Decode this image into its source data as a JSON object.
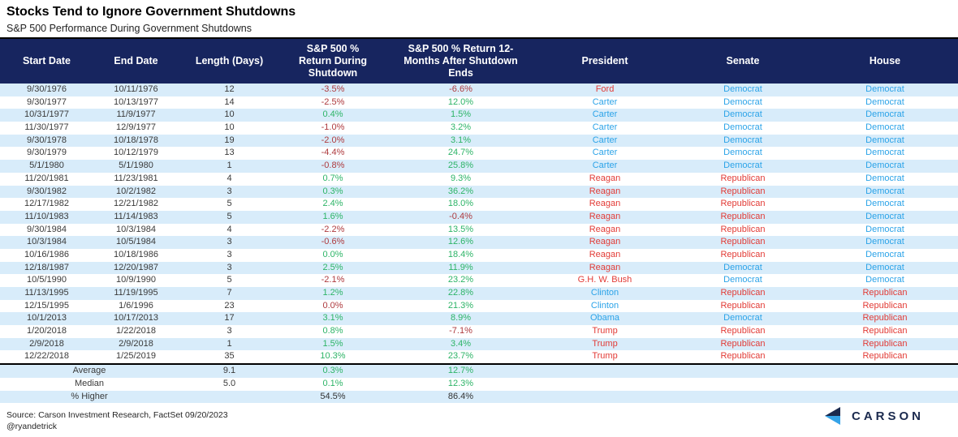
{
  "title": "Stocks Tend to Ignore Government Shutdowns",
  "subtitle": "S&P 500 Performance During Government Shutdowns",
  "chart_data": {
    "type": "table",
    "columns": [
      "Start Date",
      "End Date",
      "Length (Days)",
      "S&P 500 %\nReturn During\nShutdown",
      "S&P 500 % Return 12-\nMonths After Shutdown\nEnds",
      "President",
      "Senate",
      "House"
    ],
    "rows": [
      {
        "start": "9/30/1976",
        "end": "10/11/1976",
        "len": "12",
        "during": "-3.5%",
        "during_c": "neg",
        "after": "-6.6%",
        "after_c": "neg",
        "pres": "Ford",
        "pres_c": "rep",
        "senate": "Democrat",
        "senate_c": "dem",
        "house": "Democrat",
        "house_c": "dem"
      },
      {
        "start": "9/30/1977",
        "end": "10/13/1977",
        "len": "14",
        "during": "-2.5%",
        "during_c": "neg",
        "after": "12.0%",
        "after_c": "pos",
        "pres": "Carter",
        "pres_c": "dem",
        "senate": "Democrat",
        "senate_c": "dem",
        "house": "Democrat",
        "house_c": "dem"
      },
      {
        "start": "10/31/1977",
        "end": "11/9/1977",
        "len": "10",
        "during": "0.4%",
        "during_c": "pos",
        "after": "1.5%",
        "after_c": "pos",
        "pres": "Carter",
        "pres_c": "dem",
        "senate": "Democrat",
        "senate_c": "dem",
        "house": "Democrat",
        "house_c": "dem"
      },
      {
        "start": "11/30/1977",
        "end": "12/9/1977",
        "len": "10",
        "during": "-1.0%",
        "during_c": "neg",
        "after": "3.2%",
        "after_c": "pos",
        "pres": "Carter",
        "pres_c": "dem",
        "senate": "Democrat",
        "senate_c": "dem",
        "house": "Democrat",
        "house_c": "dem"
      },
      {
        "start": "9/30/1978",
        "end": "10/18/1978",
        "len": "19",
        "during": "-2.0%",
        "during_c": "neg",
        "after": "3.1%",
        "after_c": "pos",
        "pres": "Carter",
        "pres_c": "dem",
        "senate": "Democrat",
        "senate_c": "dem",
        "house": "Democrat",
        "house_c": "dem"
      },
      {
        "start": "9/30/1979",
        "end": "10/12/1979",
        "len": "13",
        "during": "-4.4%",
        "during_c": "neg",
        "after": "24.7%",
        "after_c": "pos",
        "pres": "Carter",
        "pres_c": "dem",
        "senate": "Democrat",
        "senate_c": "dem",
        "house": "Democrat",
        "house_c": "dem"
      },
      {
        "start": "5/1/1980",
        "end": "5/1/1980",
        "len": "1",
        "during": "-0.8%",
        "during_c": "neg",
        "after": "25.8%",
        "after_c": "pos",
        "pres": "Carter",
        "pres_c": "dem",
        "senate": "Democrat",
        "senate_c": "dem",
        "house": "Democrat",
        "house_c": "dem"
      },
      {
        "start": "11/20/1981",
        "end": "11/23/1981",
        "len": "4",
        "during": "0.7%",
        "during_c": "pos",
        "after": "9.3%",
        "after_c": "pos",
        "pres": "Reagan",
        "pres_c": "rep",
        "senate": "Republican",
        "senate_c": "rep",
        "house": "Democrat",
        "house_c": "dem"
      },
      {
        "start": "9/30/1982",
        "end": "10/2/1982",
        "len": "3",
        "during": "0.3%",
        "during_c": "pos",
        "after": "36.2%",
        "after_c": "pos",
        "pres": "Reagan",
        "pres_c": "rep",
        "senate": "Republican",
        "senate_c": "rep",
        "house": "Democrat",
        "house_c": "dem"
      },
      {
        "start": "12/17/1982",
        "end": "12/21/1982",
        "len": "5",
        "during": "2.4%",
        "during_c": "pos",
        "after": "18.0%",
        "after_c": "pos",
        "pres": "Reagan",
        "pres_c": "rep",
        "senate": "Republican",
        "senate_c": "rep",
        "house": "Democrat",
        "house_c": "dem"
      },
      {
        "start": "11/10/1983",
        "end": "11/14/1983",
        "len": "5",
        "during": "1.6%",
        "during_c": "pos",
        "after": "-0.4%",
        "after_c": "neg",
        "pres": "Reagan",
        "pres_c": "rep",
        "senate": "Republican",
        "senate_c": "rep",
        "house": "Democrat",
        "house_c": "dem"
      },
      {
        "start": "9/30/1984",
        "end": "10/3/1984",
        "len": "4",
        "during": "-2.2%",
        "during_c": "neg",
        "after": "13.5%",
        "after_c": "pos",
        "pres": "Reagan",
        "pres_c": "rep",
        "senate": "Republican",
        "senate_c": "rep",
        "house": "Democrat",
        "house_c": "dem"
      },
      {
        "start": "10/3/1984",
        "end": "10/5/1984",
        "len": "3",
        "during": "-0.6%",
        "during_c": "neg",
        "after": "12.6%",
        "after_c": "pos",
        "pres": "Reagan",
        "pres_c": "rep",
        "senate": "Republican",
        "senate_c": "rep",
        "house": "Democrat",
        "house_c": "dem"
      },
      {
        "start": "10/16/1986",
        "end": "10/18/1986",
        "len": "3",
        "during": "0.0%",
        "during_c": "pos",
        "after": "18.4%",
        "after_c": "pos",
        "pres": "Reagan",
        "pres_c": "rep",
        "senate": "Republican",
        "senate_c": "rep",
        "house": "Democrat",
        "house_c": "dem"
      },
      {
        "start": "12/18/1987",
        "end": "12/20/1987",
        "len": "3",
        "during": "2.5%",
        "during_c": "pos",
        "after": "11.9%",
        "after_c": "pos",
        "pres": "Reagan",
        "pres_c": "rep",
        "senate": "Democrat",
        "senate_c": "dem",
        "house": "Democrat",
        "house_c": "dem"
      },
      {
        "start": "10/5/1990",
        "end": "10/9/1990",
        "len": "5",
        "during": "-2.1%",
        "during_c": "neg",
        "after": "23.2%",
        "after_c": "pos",
        "pres": "G.H. W. Bush",
        "pres_c": "rep",
        "senate": "Democrat",
        "senate_c": "dem",
        "house": "Democrat",
        "house_c": "dem"
      },
      {
        "start": "11/13/1995",
        "end": "11/19/1995",
        "len": "7",
        "during": "1.2%",
        "during_c": "pos",
        "after": "22.8%",
        "after_c": "pos",
        "pres": "Clinton",
        "pres_c": "dem",
        "senate": "Republican",
        "senate_c": "rep",
        "house": "Republican",
        "house_c": "rep"
      },
      {
        "start": "12/15/1995",
        "end": "1/6/1996",
        "len": "23",
        "during": "0.0%",
        "during_c": "neg",
        "after": "21.3%",
        "after_c": "pos",
        "pres": "Clinton",
        "pres_c": "dem",
        "senate": "Republican",
        "senate_c": "rep",
        "house": "Republican",
        "house_c": "rep"
      },
      {
        "start": "10/1/2013",
        "end": "10/17/2013",
        "len": "17",
        "during": "3.1%",
        "during_c": "pos",
        "after": "8.9%",
        "after_c": "pos",
        "pres": "Obama",
        "pres_c": "dem",
        "senate": "Democrat",
        "senate_c": "dem",
        "house": "Republican",
        "house_c": "rep"
      },
      {
        "start": "1/20/2018",
        "end": "1/22/2018",
        "len": "3",
        "during": "0.8%",
        "during_c": "pos",
        "after": "-7.1%",
        "after_c": "neg",
        "pres": "Trump",
        "pres_c": "rep",
        "senate": "Republican",
        "senate_c": "rep",
        "house": "Republican",
        "house_c": "rep"
      },
      {
        "start": "2/9/2018",
        "end": "2/9/2018",
        "len": "1",
        "during": "1.5%",
        "during_c": "pos",
        "after": "3.4%",
        "after_c": "pos",
        "pres": "Trump",
        "pres_c": "rep",
        "senate": "Republican",
        "senate_c": "rep",
        "house": "Republican",
        "house_c": "rep"
      },
      {
        "start": "12/22/2018",
        "end": "1/25/2019",
        "len": "35",
        "during": "10.3%",
        "during_c": "pos",
        "after": "23.7%",
        "after_c": "pos",
        "pres": "Trump",
        "pres_c": "rep",
        "senate": "Republican",
        "senate_c": "rep",
        "house": "Republican",
        "house_c": "rep"
      }
    ],
    "summary": [
      {
        "label": "Average",
        "len": "9.1",
        "during": "0.3%",
        "during_c": "pos",
        "after": "12.7%",
        "after_c": "pos"
      },
      {
        "label": "Median",
        "len": "5.0",
        "during": "0.1%",
        "during_c": "pos",
        "after": "12.3%",
        "after_c": "pos"
      },
      {
        "label": "% Higher",
        "len": "",
        "during": "54.5%",
        "during_c": "plain",
        "after": "86.4%",
        "after_c": "plain"
      }
    ]
  },
  "footer": {
    "source": "Source: Carson Investment Research, FactSet 09/20/2023",
    "handle": "@ryandetrick"
  },
  "logo": {
    "text": "CARSON"
  },
  "colors": {
    "navy": "#17255f",
    "stripe": "#d8ecfa",
    "red": "#e23b36",
    "negred": "#ae3a3e",
    "green": "#2db467",
    "blue": "#2ba3e8",
    "text": "#3a3a3a"
  }
}
